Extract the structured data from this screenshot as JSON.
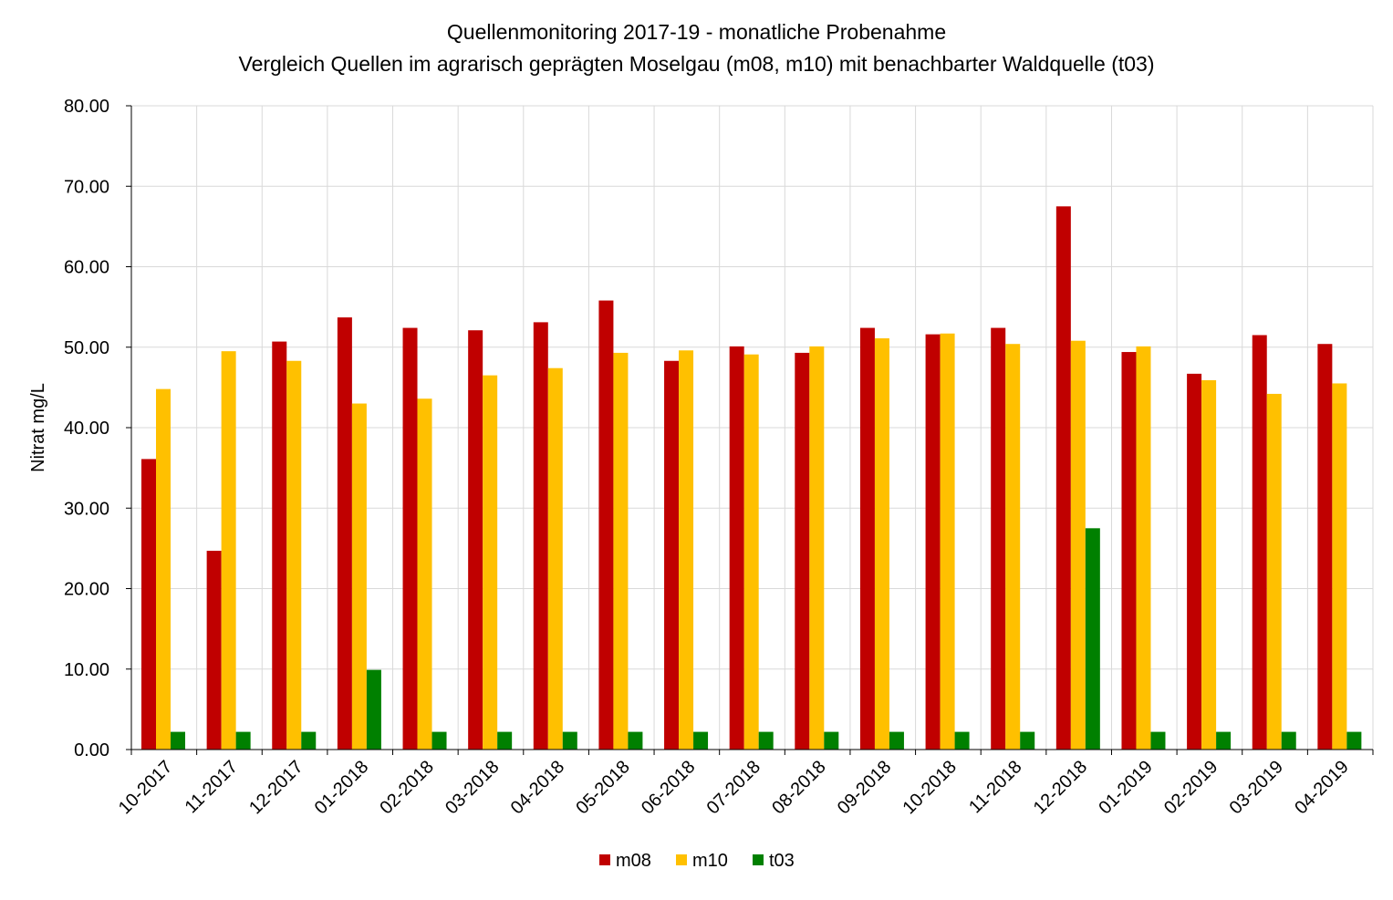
{
  "chart_data": {
    "type": "bar",
    "title": "Quellenmonitoring 2017-19 - monatliche Probenahme",
    "subtitle": "Vergleich Quellen im agrarisch geprägten Moselgau (m08, m10) mit benachbarter Waldquelle (t03)",
    "xlabel": "",
    "ylabel": "Nitrat mg/L",
    "ylim": [
      0,
      80
    ],
    "yticks": [
      "0.00",
      "10.00",
      "20.00",
      "30.00",
      "40.00",
      "50.00",
      "60.00",
      "70.00",
      "80.00"
    ],
    "grid": true,
    "legend_position": "bottom",
    "categories": [
      "10-2017",
      "11-2017",
      "12-2017",
      "01-2018",
      "02-2018",
      "03-2018",
      "04-2018",
      "05-2018",
      "06-2018",
      "07-2018",
      "08-2018",
      "09-2018",
      "10-2018",
      "11-2018",
      "12-2018",
      "01-2019",
      "02-2019",
      "03-2019",
      "04-2019"
    ],
    "series": [
      {
        "name": "m08",
        "color": "#C00000",
        "values": [
          36.1,
          24.7,
          50.7,
          53.7,
          52.4,
          52.1,
          53.1,
          55.8,
          48.3,
          50.1,
          49.3,
          52.4,
          51.6,
          52.4,
          67.5,
          49.4,
          46.7,
          51.5,
          50.4
        ]
      },
      {
        "name": "m10",
        "color": "#FFC000",
        "values": [
          44.8,
          49.5,
          48.3,
          43.0,
          43.6,
          46.5,
          47.4,
          49.3,
          49.6,
          49.1,
          50.1,
          51.1,
          51.7,
          50.4,
          50.8,
          50.1,
          45.9,
          44.2,
          45.5
        ]
      },
      {
        "name": "t03",
        "color": "#008000",
        "values": [
          2.2,
          2.2,
          2.2,
          9.9,
          2.2,
          2.2,
          2.2,
          2.2,
          2.2,
          2.2,
          2.2,
          2.2,
          2.2,
          2.2,
          27.5,
          2.2,
          2.2,
          2.2,
          2.2
        ]
      }
    ]
  }
}
